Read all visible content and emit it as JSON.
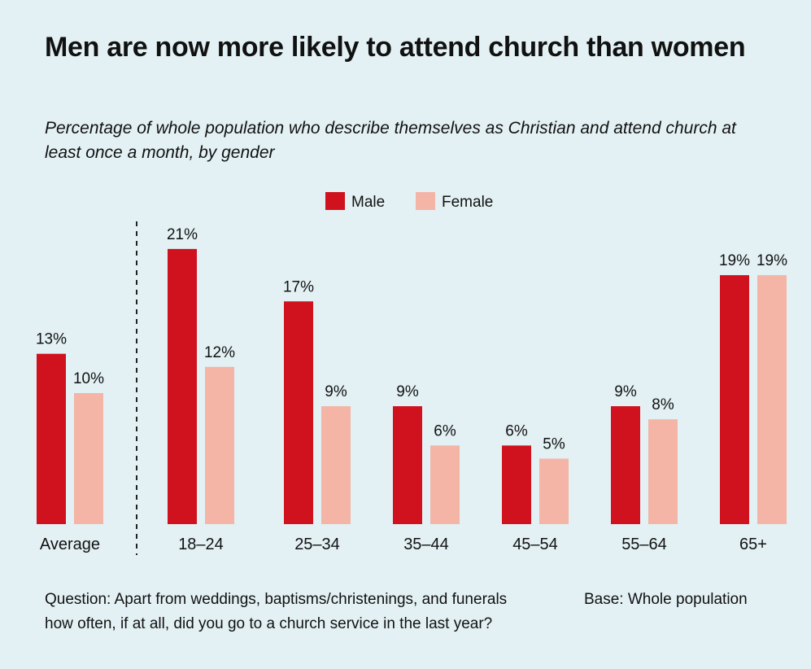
{
  "chart_data": {
    "type": "bar",
    "title": "Men are now more likely to attend church than women",
    "subtitle": "Percentage of whole population who describe themselves as Christian and attend church at least once a month, by gender",
    "categories": [
      "Average",
      "18–24",
      "25–34",
      "35–44",
      "45–54",
      "55–64",
      "65+"
    ],
    "series": [
      {
        "name": "Male",
        "color": "#d0121f",
        "values": [
          13,
          21,
          17,
          9,
          6,
          9,
          19
        ]
      },
      {
        "name": "Female",
        "color": "#f4b5a6",
        "values": [
          10,
          12,
          9,
          6,
          5,
          8,
          19
        ]
      }
    ],
    "value_suffix": "%",
    "ylim": [
      0,
      25
    ],
    "grid": false,
    "legend_position": "top-center",
    "xlabel": "",
    "ylabel": ""
  },
  "footer": {
    "question": "Question: Apart from weddings, baptisms/christenings, and funerals how often, if at all, did you go to a church service in the last year?",
    "base": "Base: Whole population"
  }
}
